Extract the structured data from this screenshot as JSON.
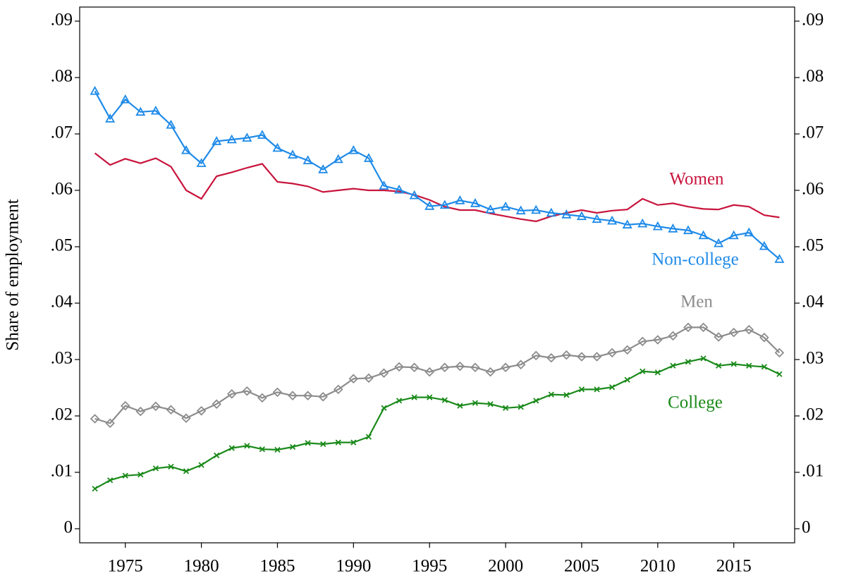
{
  "chart_data": {
    "type": "line",
    "y_label": "Share of employment",
    "x": [
      1973,
      1974,
      1975,
      1976,
      1977,
      1978,
      1979,
      1980,
      1981,
      1982,
      1983,
      1984,
      1985,
      1986,
      1987,
      1988,
      1989,
      1990,
      1991,
      1992,
      1993,
      1994,
      1995,
      1996,
      1997,
      1998,
      1999,
      2000,
      2001,
      2002,
      2003,
      2004,
      2005,
      2006,
      2007,
      2008,
      2009,
      2010,
      2011,
      2012,
      2013,
      2014,
      2015,
      2016,
      2017,
      2018
    ],
    "xlim": [
      1972,
      2019
    ],
    "xticks": [
      1975,
      1980,
      1985,
      1990,
      1995,
      2000,
      2005,
      2010,
      2015
    ],
    "ylim": [
      -0.0025,
      0.0925
    ],
    "yticks": [
      0,
      {
        "value": 0.01,
        "label": ".01"
      },
      {
        "value": 0.02,
        "label": ".02"
      },
      {
        "value": 0.03,
        "label": ".03"
      },
      {
        "value": 0.04,
        "label": ".04"
      },
      {
        "value": 0.05,
        "label": ".05"
      },
      {
        "value": 0.06,
        "label": ".06"
      },
      {
        "value": 0.07,
        "label": ".07"
      },
      {
        "value": 0.08,
        "label": ".08"
      },
      {
        "value": 0.09,
        "label": ".09"
      }
    ],
    "mirror_y_axis": true,
    "grid": false,
    "series": [
      {
        "name": "Women",
        "color": "#c8143c",
        "marker": "none",
        "values": [
          0.0666,
          0.0645,
          0.0656,
          0.0648,
          0.0657,
          0.0642,
          0.06,
          0.0585,
          0.0625,
          0.0632,
          0.064,
          0.0647,
          0.0615,
          0.0612,
          0.0607,
          0.0597,
          0.06,
          0.0603,
          0.06,
          0.06,
          0.0598,
          0.0592,
          0.0583,
          0.0571,
          0.0565,
          0.0565,
          0.0559,
          0.0554,
          0.0549,
          0.0545,
          0.0554,
          0.056,
          0.0565,
          0.056,
          0.0564,
          0.0566,
          0.0585,
          0.0574,
          0.0577,
          0.0571,
          0.0567,
          0.0566,
          0.0574,
          0.0571,
          0.0556,
          0.0552
        ]
      },
      {
        "name": "Non-college",
        "color": "#1e8ae8",
        "marker": "triangle",
        "values": [
          0.0776,
          0.0727,
          0.0761,
          0.0739,
          0.0741,
          0.0716,
          0.0671,
          0.0648,
          0.0687,
          0.069,
          0.0693,
          0.0698,
          0.0675,
          0.0663,
          0.0653,
          0.0637,
          0.0655,
          0.0671,
          0.0657,
          0.0608,
          0.0601,
          0.0591,
          0.0572,
          0.0574,
          0.0582,
          0.0577,
          0.0566,
          0.0571,
          0.0564,
          0.0565,
          0.056,
          0.0557,
          0.0554,
          0.0549,
          0.0546,
          0.0539,
          0.0541,
          0.0536,
          0.0532,
          0.0529,
          0.052,
          0.0506,
          0.052,
          0.0525,
          0.0501,
          0.0478
        ]
      },
      {
        "name": "Men",
        "color": "#8c8c8c",
        "marker": "diamond",
        "values": [
          0.0195,
          0.0187,
          0.0218,
          0.0208,
          0.0217,
          0.0211,
          0.0196,
          0.0209,
          0.0221,
          0.0239,
          0.0244,
          0.0232,
          0.0242,
          0.0236,
          0.0236,
          0.0234,
          0.0247,
          0.0266,
          0.0267,
          0.0276,
          0.0287,
          0.0286,
          0.0278,
          0.0286,
          0.0288,
          0.0286,
          0.0278,
          0.0286,
          0.0291,
          0.0307,
          0.0303,
          0.0308,
          0.0305,
          0.0305,
          0.0312,
          0.0317,
          0.0332,
          0.0335,
          0.0342,
          0.0357,
          0.0357,
          0.034,
          0.0348,
          0.0353,
          0.0339,
          0.0312
        ]
      },
      {
        "name": "College",
        "color": "#1a8a1a",
        "marker": "x",
        "values": [
          0.0071,
          0.0086,
          0.0094,
          0.0096,
          0.0107,
          0.011,
          0.0102,
          0.0113,
          0.013,
          0.0143,
          0.0147,
          0.0141,
          0.014,
          0.0145,
          0.0152,
          0.015,
          0.0153,
          0.0153,
          0.0163,
          0.0214,
          0.0227,
          0.0233,
          0.0233,
          0.0228,
          0.0218,
          0.0223,
          0.0221,
          0.0214,
          0.0216,
          0.0227,
          0.0238,
          0.0237,
          0.0247,
          0.0247,
          0.0251,
          0.0264,
          0.0279,
          0.0277,
          0.0289,
          0.0296,
          0.0302,
          0.0289,
          0.0292,
          0.0289,
          0.0287,
          0.0274
        ]
      }
    ]
  }
}
